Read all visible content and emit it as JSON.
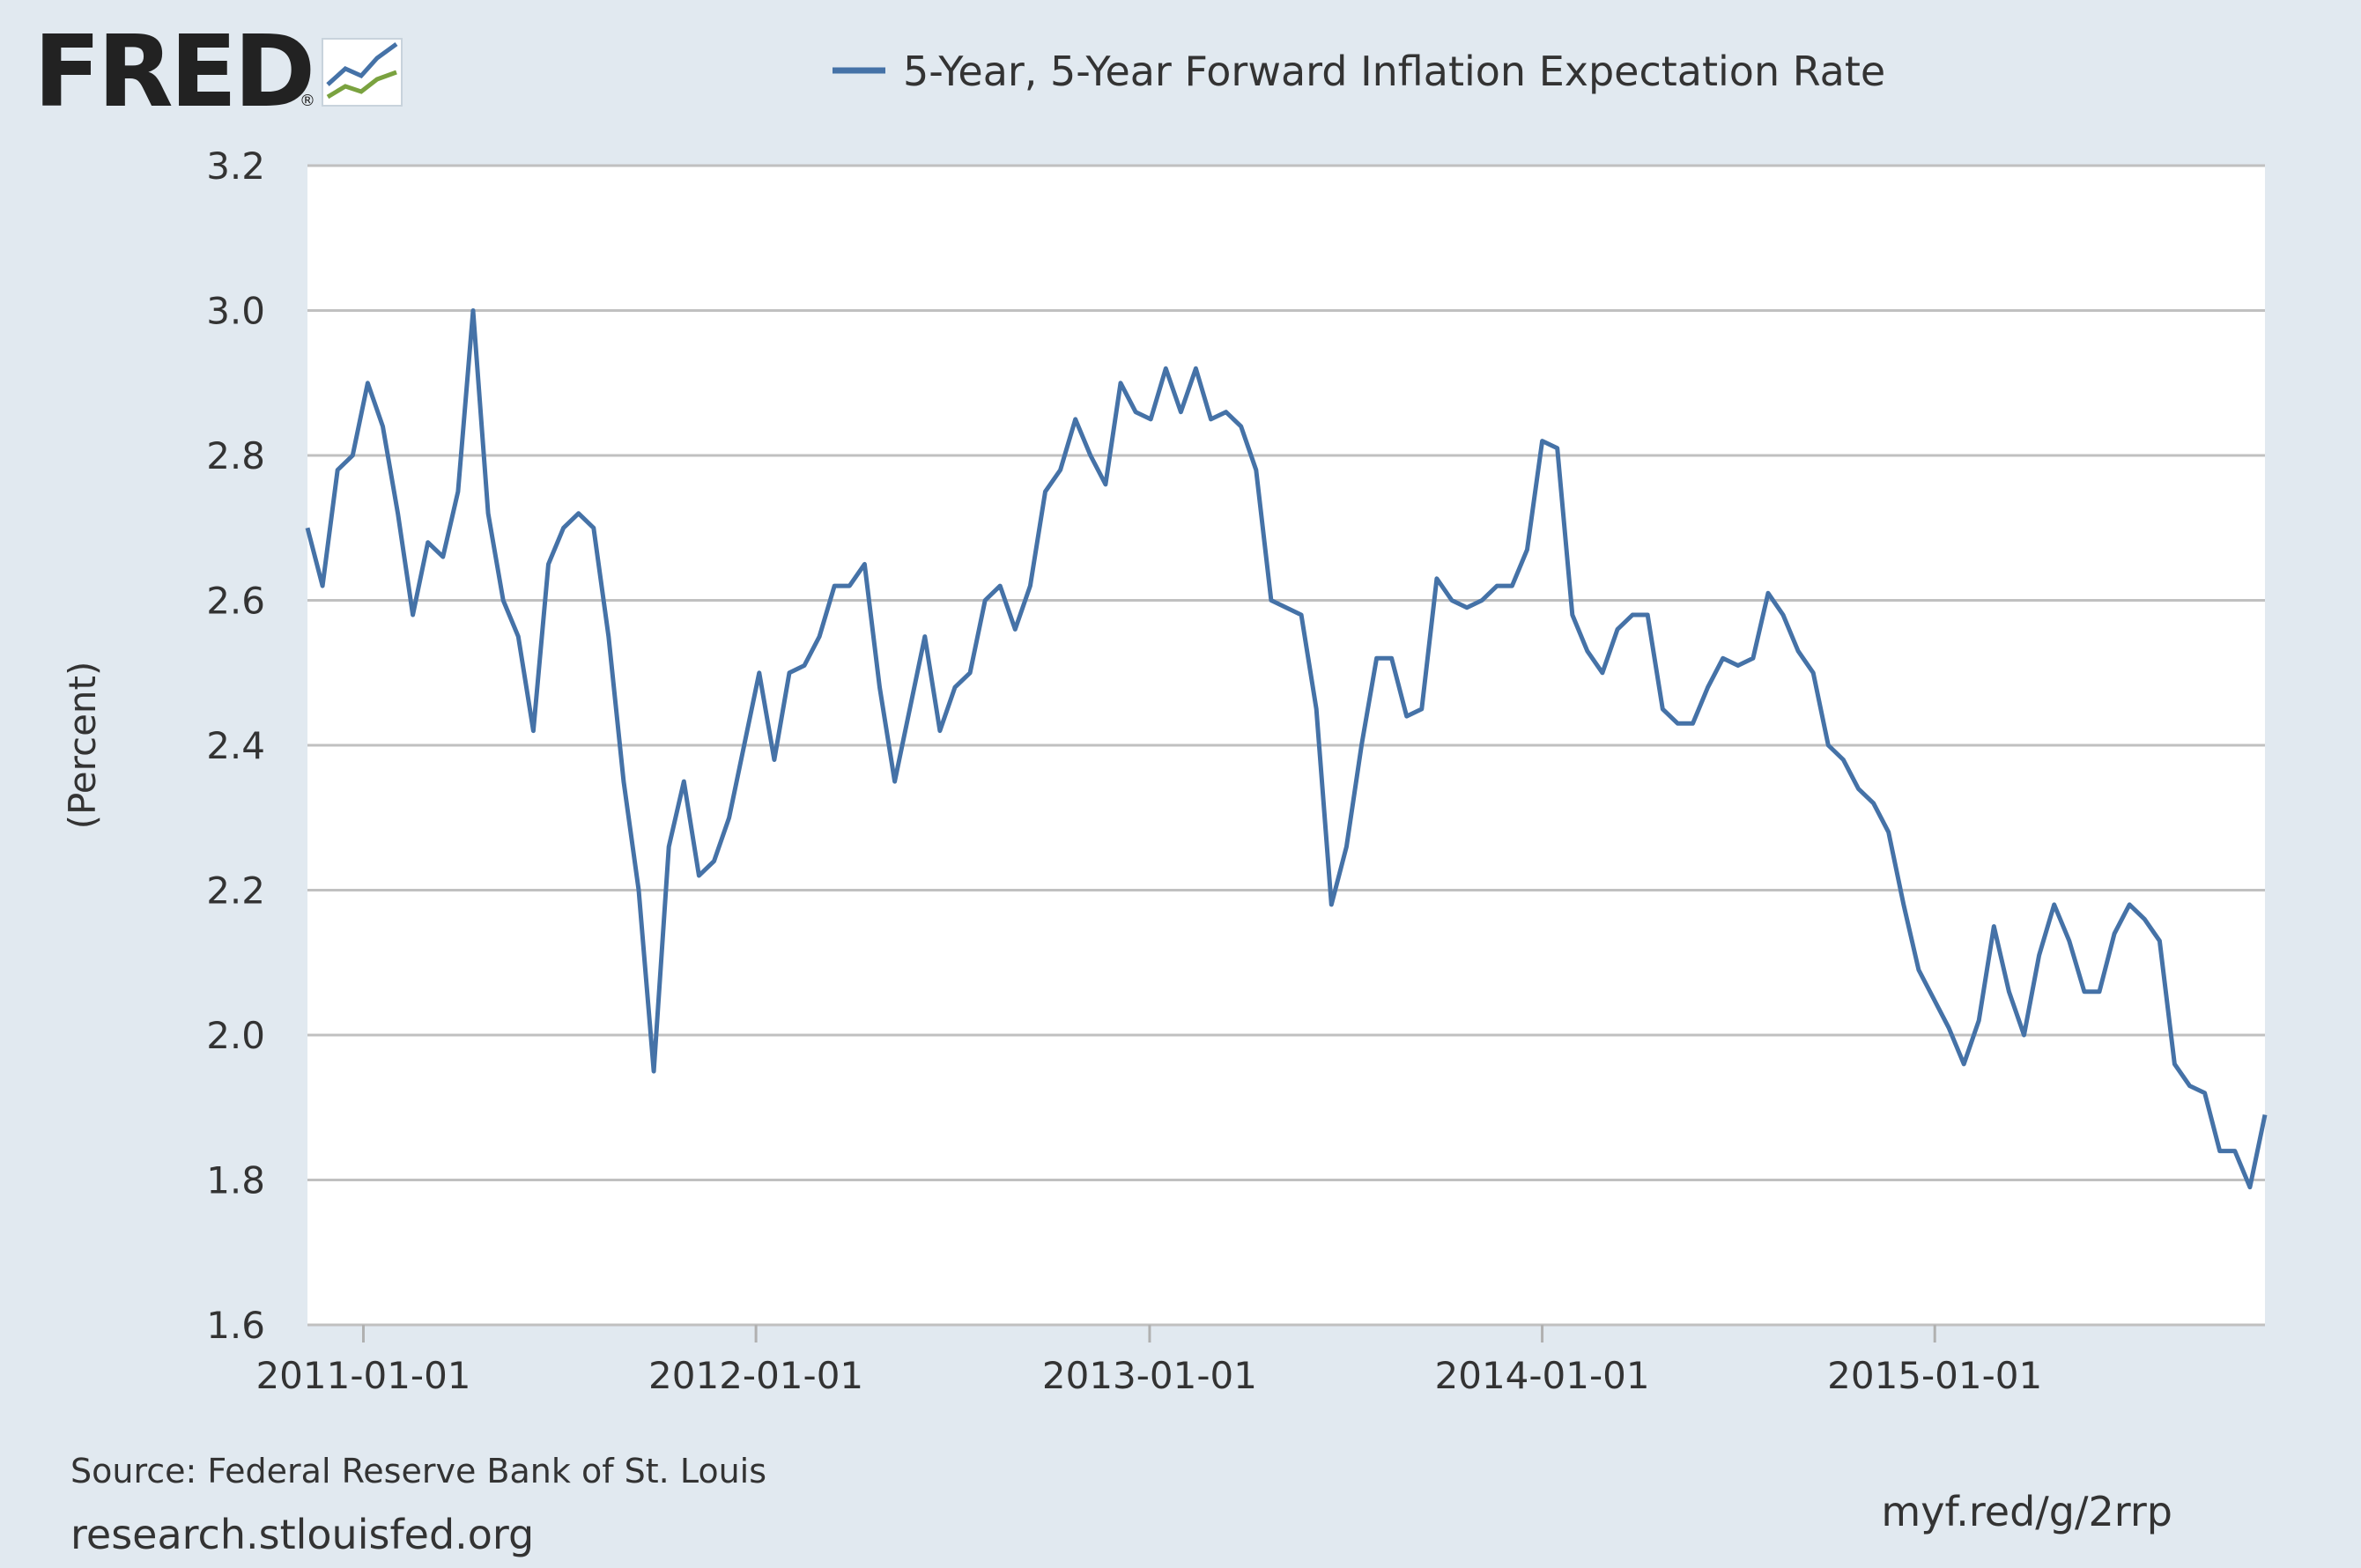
{
  "logo": "FRED",
  "logo_registered": "®",
  "footer": {
    "source": "Source: Federal Reserve Bank of St. Louis",
    "site": "research.stlouisfed.org",
    "short_url": "myf.red/g/2rrp"
  },
  "chart_data": {
    "type": "line",
    "y_label": "(Percent)",
    "grid": true,
    "xlim": [
      "2010-11-10",
      "2015-11-04"
    ],
    "xticks": [
      "2011-01-01",
      "2012-01-01",
      "2013-01-01",
      "2014-01-01",
      "2015-01-01"
    ],
    "ylim": [
      1.6,
      3.2
    ],
    "yticks": [
      1.6,
      1.8,
      {
        "value": 2.0,
        "label": "2.0"
      },
      2.2,
      2.4,
      2.6,
      2.8,
      {
        "value": 3.0,
        "label": "3.0"
      },
      3.2
    ],
    "x": [
      "2010-11-10",
      "2010-11-24",
      "2010-12-08",
      "2010-12-22",
      "2011-01-05",
      "2011-01-19",
      "2011-02-02",
      "2011-02-16",
      "2011-03-02",
      "2011-03-16",
      "2011-03-30",
      "2011-04-13",
      "2011-04-27",
      "2011-05-11",
      "2011-05-25",
      "2011-06-08",
      "2011-06-22",
      "2011-07-06",
      "2011-07-20",
      "2011-08-03",
      "2011-08-17",
      "2011-08-31",
      "2011-09-14",
      "2011-09-28",
      "2011-10-12",
      "2011-10-26",
      "2011-11-09",
      "2011-11-23",
      "2011-12-07",
      "2011-12-21",
      "2012-01-04",
      "2012-01-18",
      "2012-02-01",
      "2012-02-15",
      "2012-02-29",
      "2012-03-14",
      "2012-03-28",
      "2012-04-11",
      "2012-04-25",
      "2012-05-09",
      "2012-05-23",
      "2012-06-06",
      "2012-06-20",
      "2012-07-04",
      "2012-07-18",
      "2012-08-01",
      "2012-08-15",
      "2012-08-29",
      "2012-09-12",
      "2012-09-26",
      "2012-10-10",
      "2012-10-24",
      "2012-11-07",
      "2012-11-21",
      "2012-12-05",
      "2012-12-19",
      "2013-01-02",
      "2013-01-16",
      "2013-01-30",
      "2013-02-13",
      "2013-02-27",
      "2013-03-13",
      "2013-03-27",
      "2013-04-10",
      "2013-04-24",
      "2013-05-08",
      "2013-05-22",
      "2013-06-05",
      "2013-06-19",
      "2013-07-03",
      "2013-07-17",
      "2013-07-31",
      "2013-08-14",
      "2013-08-28",
      "2013-09-11",
      "2013-09-25",
      "2013-10-09",
      "2013-10-23",
      "2013-11-06",
      "2013-11-20",
      "2013-12-04",
      "2013-12-18",
      "2014-01-01",
      "2014-01-15",
      "2014-01-29",
      "2014-02-12",
      "2014-02-26",
      "2014-03-12",
      "2014-03-26",
      "2014-04-09",
      "2014-04-23",
      "2014-05-07",
      "2014-05-21",
      "2014-06-04",
      "2014-06-18",
      "2014-07-02",
      "2014-07-16",
      "2014-07-30",
      "2014-08-13",
      "2014-08-27",
      "2014-09-10",
      "2014-09-24",
      "2014-10-08",
      "2014-10-22",
      "2014-11-05",
      "2014-11-19",
      "2014-12-03",
      "2014-12-17",
      "2014-12-31",
      "2015-01-14",
      "2015-01-28",
      "2015-02-11",
      "2015-02-25",
      "2015-03-11",
      "2015-03-25",
      "2015-04-08",
      "2015-04-22",
      "2015-05-06",
      "2015-05-20",
      "2015-06-03",
      "2015-06-17",
      "2015-07-01",
      "2015-07-15",
      "2015-07-29",
      "2015-08-12",
      "2015-08-26",
      "2015-09-09",
      "2015-09-23",
      "2015-10-07",
      "2015-10-21",
      "2015-11-04"
    ],
    "series": [
      {
        "name": "5-Year, 5-Year Forward Inflation Expectation Rate",
        "color": "#4572a7",
        "values": [
          2.7,
          2.62,
          2.78,
          2.8,
          2.9,
          2.84,
          2.72,
          2.58,
          2.68,
          2.66,
          2.75,
          3.0,
          2.72,
          2.6,
          2.55,
          2.42,
          2.65,
          2.7,
          2.72,
          2.7,
          2.55,
          2.35,
          2.2,
          1.95,
          2.26,
          2.35,
          2.22,
          2.24,
          2.3,
          2.4,
          2.5,
          2.38,
          2.5,
          2.51,
          2.55,
          2.62,
          2.62,
          2.65,
          2.48,
          2.35,
          2.45,
          2.55,
          2.42,
          2.48,
          2.5,
          2.6,
          2.62,
          2.56,
          2.62,
          2.75,
          2.78,
          2.85,
          2.8,
          2.76,
          2.9,
          2.86,
          2.85,
          2.92,
          2.86,
          2.92,
          2.85,
          2.86,
          2.84,
          2.78,
          2.6,
          2.59,
          2.58,
          2.45,
          2.18,
          2.26,
          2.4,
          2.52,
          2.52,
          2.44,
          2.45,
          2.63,
          2.6,
          2.59,
          2.6,
          2.62,
          2.62,
          2.67,
          2.82,
          2.81,
          2.58,
          2.53,
          2.5,
          2.56,
          2.58,
          2.58,
          2.45,
          2.43,
          2.43,
          2.48,
          2.52,
          2.51,
          2.52,
          2.61,
          2.58,
          2.53,
          2.5,
          2.4,
          2.38,
          2.34,
          2.32,
          2.28,
          2.18,
          2.09,
          2.05,
          2.01,
          1.96,
          2.02,
          2.15,
          2.06,
          2.0,
          2.11,
          2.18,
          2.13,
          2.06,
          2.06,
          2.14,
          2.18,
          2.16,
          2.13,
          1.96,
          1.93,
          1.92,
          1.84,
          1.84,
          1.79,
          1.89
        ]
      }
    ]
  }
}
